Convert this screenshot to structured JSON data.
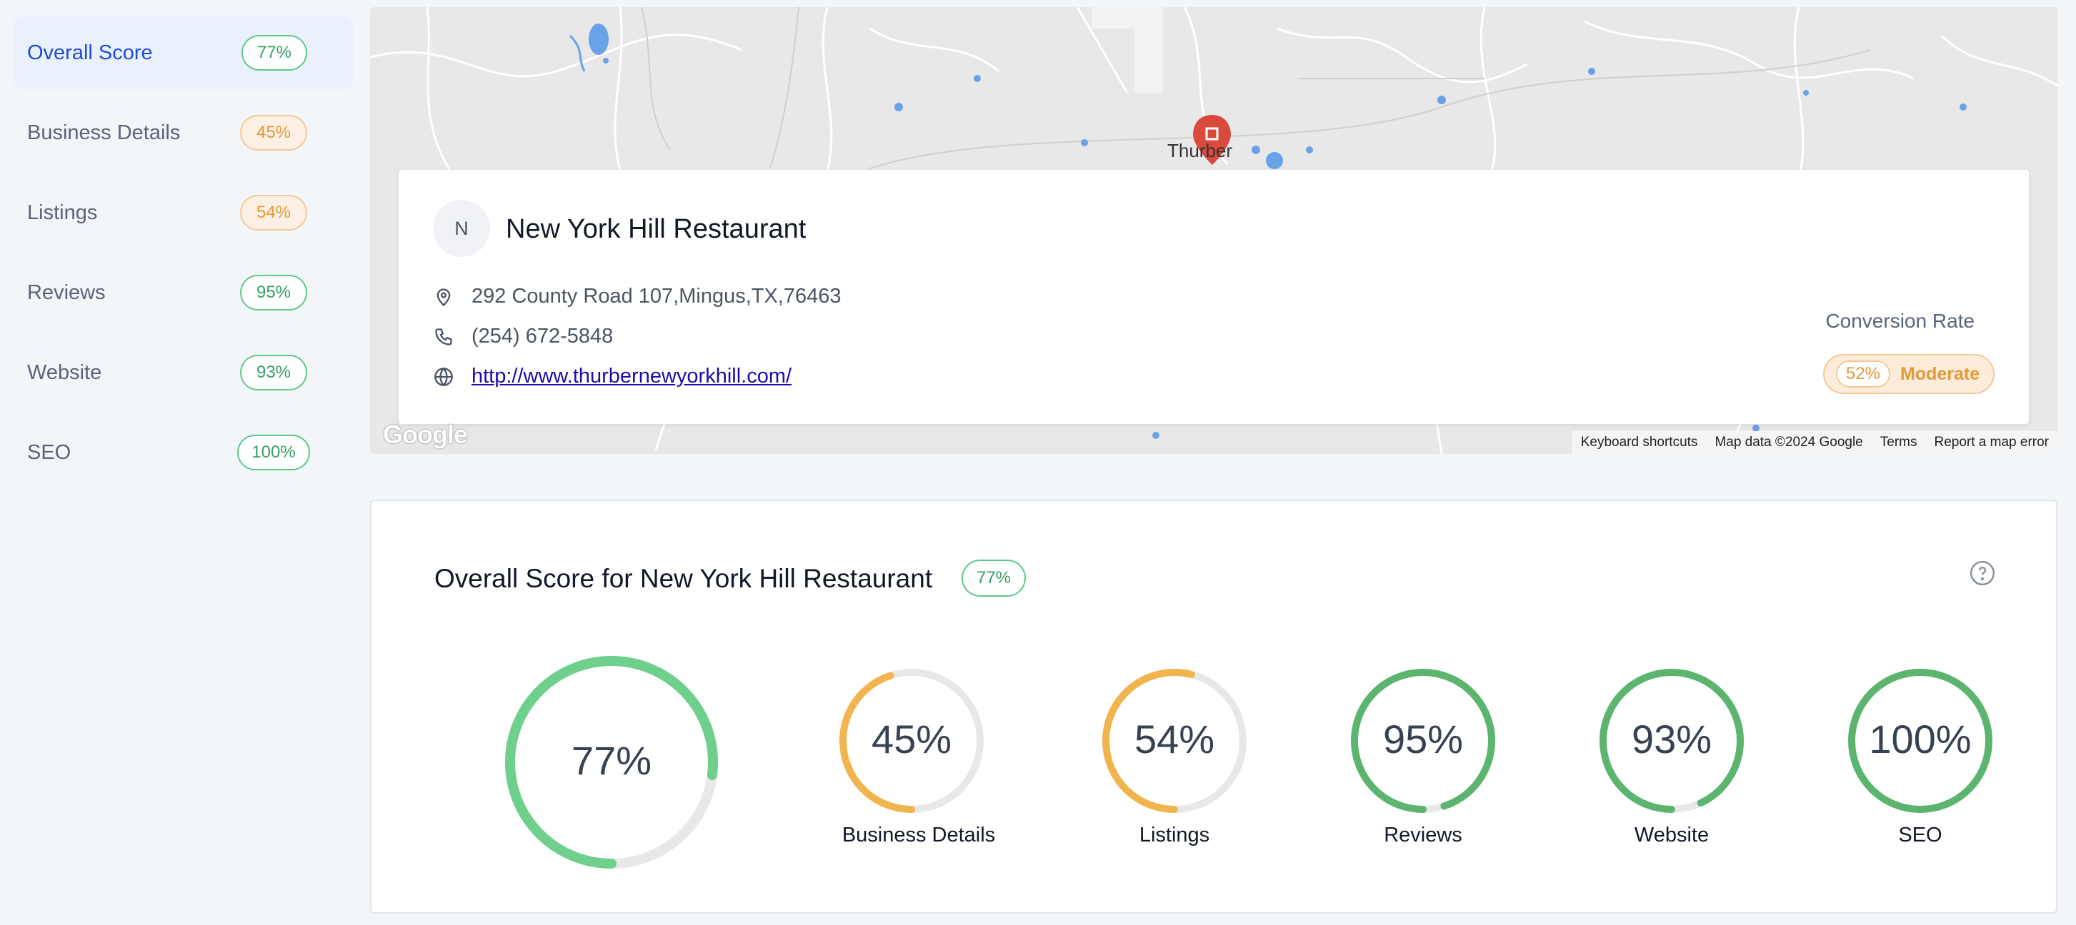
{
  "sidebar": {
    "items": [
      {
        "label": "Overall Score",
        "score": "77%",
        "tone": "green",
        "active": true
      },
      {
        "label": "Business Details",
        "score": "45%",
        "tone": "orange",
        "active": false
      },
      {
        "label": "Listings",
        "score": "54%",
        "tone": "orange",
        "active": false
      },
      {
        "label": "Reviews",
        "score": "95%",
        "tone": "green",
        "active": false
      },
      {
        "label": "Website",
        "score": "93%",
        "tone": "green",
        "active": false
      },
      {
        "label": "SEO",
        "score": "100%",
        "tone": "green",
        "active": false
      }
    ]
  },
  "map": {
    "place_label": "Thurber",
    "footer": [
      "Keyboard shortcuts",
      "Map data ©2024 Google",
      "Terms",
      "Report a map error"
    ],
    "logo": "Google"
  },
  "business": {
    "initial": "N",
    "name": "New York Hill Restaurant",
    "address": "292 County Road 107,Mingus,TX,76463",
    "phone": "(254) 672-5848",
    "website": "http://www.thurbernewyorkhill.com/",
    "address_icon": "map-pin-icon",
    "phone_icon": "phone-icon",
    "website_icon": "globe-icon"
  },
  "conversion": {
    "title": "Conversion Rate",
    "percent": "52%",
    "level": "Moderate"
  },
  "overall": {
    "title": "Overall Score for New York Hill Restaurant",
    "badge": "77%",
    "help_icon": "help-circle-icon",
    "gauges": [
      {
        "label": "",
        "value_text": "77%",
        "value": 77,
        "color": "#6fcf8d"
      },
      {
        "label": "Business Details",
        "value_text": "45%",
        "value": 45,
        "color": "#f2b44c"
      },
      {
        "label": "Listings",
        "value_text": "54%",
        "value": 54,
        "color": "#f2b44c"
      },
      {
        "label": "Reviews",
        "value_text": "95%",
        "value": 95,
        "color": "#5cb56e"
      },
      {
        "label": "Website",
        "value_text": "93%",
        "value": 93,
        "color": "#5cb56e"
      },
      {
        "label": "SEO",
        "value_text": "100%",
        "value": 100,
        "color": "#5cb56e"
      }
    ]
  },
  "colors": {
    "accent": "#1d4ed8",
    "green": "#36a064",
    "orange": "#e19a3c",
    "pin": "#d94a3d"
  }
}
